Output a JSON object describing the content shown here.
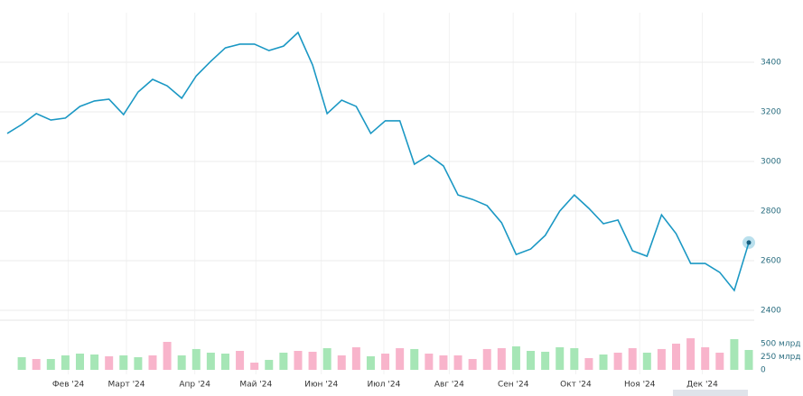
{
  "chart_data": [
    {
      "type": "line",
      "color": "#1b98c4",
      "grid": true,
      "x": [
        0,
        1,
        2,
        3,
        4,
        5,
        6,
        7,
        8,
        9,
        10,
        11,
        12,
        13,
        14,
        15,
        16,
        17,
        18,
        19,
        20,
        21,
        22,
        23,
        24,
        25,
        26,
        27,
        28,
        29,
        30,
        31,
        32,
        33,
        34,
        35,
        36,
        37,
        38,
        39,
        40,
        41,
        42,
        43,
        44,
        45,
        46,
        47,
        48,
        49,
        50,
        51
      ],
      "values": [
        3113,
        3149,
        3193,
        3167,
        3175,
        3222,
        3244,
        3251,
        3189,
        3280,
        3331,
        3305,
        3255,
        3345,
        3404,
        3458,
        3473,
        3473,
        3447,
        3465,
        3520,
        3389,
        3193,
        3247,
        3222,
        3113,
        3164,
        3164,
        2989,
        3025,
        2982,
        2865,
        2847,
        2822,
        2753,
        2625,
        2647,
        2702,
        2800,
        2865,
        2811,
        2749,
        2764,
        2640,
        2618,
        2785,
        2709,
        2589,
        2589,
        2553,
        2480,
        2673
      ],
      "xlim": [
        0,
        51
      ],
      "xticks": [
        {
          "value": 4.2,
          "label": "Фев '24"
        },
        {
          "value": 8.2,
          "label": "Март '24"
        },
        {
          "value": 12.9,
          "label": "Апр '24"
        },
        {
          "value": 17.1,
          "label": "Май '24"
        },
        {
          "value": 21.6,
          "label": "Июн '24"
        },
        {
          "value": 25.9,
          "label": "Июл '24"
        },
        {
          "value": 30.4,
          "label": "Авг '24"
        },
        {
          "value": 34.8,
          "label": "Сен '24"
        },
        {
          "value": 39.1,
          "label": "Окт '24"
        },
        {
          "value": 43.5,
          "label": "Ноя '24"
        },
        {
          "value": 47.8,
          "label": "Дек '24"
        }
      ],
      "ylim": [
        2400,
        3600
      ],
      "yticks": [
        3400,
        3200,
        3000,
        2800,
        2600,
        2400
      ]
    },
    {
      "type": "bar",
      "x": [
        1,
        2,
        3,
        4,
        5,
        6,
        7,
        8,
        9,
        10,
        11,
        12,
        13,
        14,
        15,
        16,
        17,
        18,
        19,
        20,
        21,
        22,
        23,
        24,
        25,
        26,
        27,
        28,
        29,
        30,
        31,
        32,
        33,
        34,
        35,
        36,
        37,
        38,
        39,
        40,
        41,
        42,
        43,
        44,
        45,
        46,
        47,
        48,
        49,
        50,
        51
      ],
      "values": [
        241,
        207,
        207,
        276,
        310,
        293,
        259,
        276,
        241,
        276,
        534,
        276,
        397,
        328,
        310,
        362,
        138,
        190,
        328,
        362,
        345,
        414,
        276,
        431,
        259,
        310,
        414,
        397,
        310,
        276,
        276,
        207,
        397,
        414,
        448,
        362,
        345,
        431,
        414,
        224,
        293,
        328,
        414,
        328,
        397,
        500,
        603,
        431,
        328,
        586,
        379
      ],
      "colors": [
        "#a6e6b6",
        "#f8b4cb",
        "#a6e6b6",
        "#a6e6b6",
        "#a6e6b6",
        "#a6e6b6",
        "#f8b4cb",
        "#a6e6b6",
        "#a6e6b6",
        "#f8b4cb",
        "#f8b4cb",
        "#a6e6b6",
        "#a6e6b6",
        "#a6e6b6",
        "#a6e6b6",
        "#f8b4cb",
        "#f8b4cb",
        "#a6e6b6",
        "#a6e6b6",
        "#f8b4cb",
        "#f8b4cb",
        "#a6e6b6",
        "#f8b4cb",
        "#f8b4cb",
        "#a6e6b6",
        "#f8b4cb",
        "#f8b4cb",
        "#a6e6b6",
        "#f8b4cb",
        "#f8b4cb",
        "#f8b4cb",
        "#f8b4cb",
        "#f8b4cb",
        "#f8b4cb",
        "#a6e6b6",
        "#a6e6b6",
        "#a6e6b6",
        "#a6e6b6",
        "#a6e6b6",
        "#f8b4cb",
        "#a6e6b6",
        "#f8b4cb",
        "#f8b4cb",
        "#a6e6b6",
        "#f8b4cb",
        "#f8b4cb",
        "#f8b4cb",
        "#f8b4cb",
        "#f8b4cb",
        "#a6e6b6",
        "#a6e6b6"
      ],
      "ylim": [
        0,
        775
      ],
      "yticks": [
        {
          "value": 500,
          "label": "500 млрд"
        },
        {
          "value": 250,
          "label": "250 млрд"
        },
        0
      ]
    }
  ]
}
